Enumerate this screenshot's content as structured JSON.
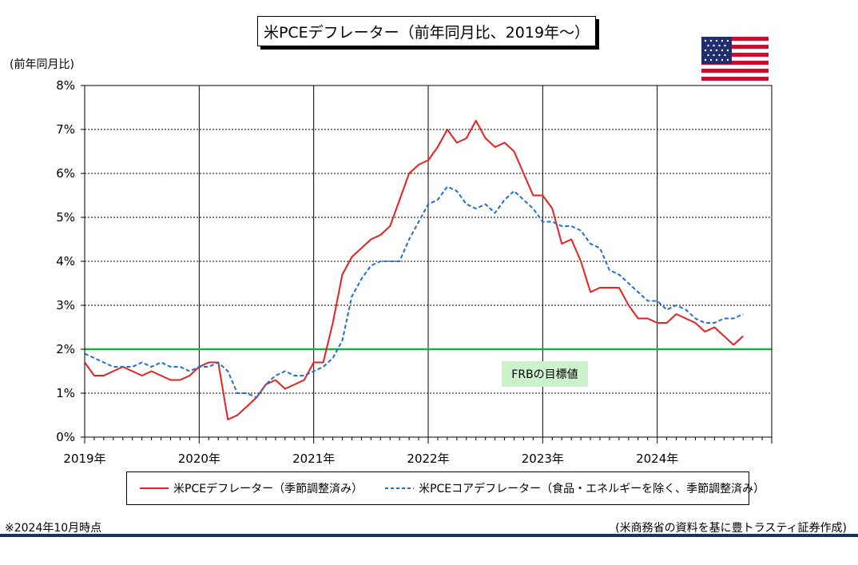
{
  "title": "米PCEデフレーター（前年同月比、2019年～）",
  "y_unit_label": "(前年同月比)",
  "target_label": "FRBの目標値",
  "note_left": "※2024年10月時点",
  "note_right": "(米商務省の資料を基に豊トラスティ証券作成)",
  "flag_icon": "us-flag-icon",
  "colors": {
    "headline": "#e8201e",
    "core": "#1f6fd1",
    "target": "#1fad4a",
    "bottom_rule": "#17365d"
  },
  "chart_data": {
    "type": "line",
    "title": "米PCEデフレーター（前年同月比、2019年～）",
    "ylabel": "(前年同月比)",
    "xlabel": "",
    "ylim": [
      0,
      8
    ],
    "xlim": [
      "2019-01",
      "2025-01"
    ],
    "yticks": [
      "0%",
      "1%",
      "2%",
      "3%",
      "4%",
      "5%",
      "6%",
      "7%",
      "8%"
    ],
    "xticks": [
      "2019年",
      "2020年",
      "2021年",
      "2022年",
      "2023年",
      "2024年"
    ],
    "grid": true,
    "legend_position": "bottom",
    "reference_line": {
      "value": 2.0,
      "label": "FRBの目標値"
    },
    "series": [
      {
        "name": "米PCEデフレーター（季節調整済み）",
        "style": "solid",
        "values": [
          1.7,
          1.4,
          1.4,
          1.5,
          1.6,
          1.5,
          1.4,
          1.5,
          1.4,
          1.3,
          1.3,
          1.4,
          1.6,
          1.7,
          1.7,
          0.4,
          0.5,
          0.7,
          0.9,
          1.2,
          1.3,
          1.1,
          1.2,
          1.3,
          1.7,
          1.7,
          2.6,
          3.7,
          4.1,
          4.3,
          4.5,
          4.6,
          4.8,
          5.4,
          6.0,
          6.2,
          6.3,
          6.6,
          7.0,
          6.7,
          6.8,
          7.2,
          6.8,
          6.6,
          6.7,
          6.5,
          6.0,
          5.5,
          5.5,
          5.2,
          4.4,
          4.5,
          4.0,
          3.3,
          3.4,
          3.4,
          3.4,
          3.0,
          2.7,
          2.7,
          2.6,
          2.6,
          2.8,
          2.7,
          2.6,
          2.4,
          2.5,
          2.3,
          2.1,
          2.3
        ]
      },
      {
        "name": "米PCEコアデフレーター（食品・エネルギーを除く、季節調整済み）",
        "style": "dashed",
        "values": [
          1.9,
          1.8,
          1.7,
          1.6,
          1.6,
          1.6,
          1.7,
          1.6,
          1.7,
          1.6,
          1.6,
          1.5,
          1.6,
          1.6,
          1.7,
          1.5,
          1.0,
          1.0,
          0.9,
          1.2,
          1.4,
          1.5,
          1.4,
          1.4,
          1.5,
          1.6,
          1.8,
          2.2,
          3.2,
          3.6,
          3.9,
          4.0,
          4.0,
          4.0,
          4.5,
          4.9,
          5.3,
          5.4,
          5.7,
          5.6,
          5.3,
          5.2,
          5.3,
          5.1,
          5.4,
          5.6,
          5.4,
          5.2,
          4.9,
          4.9,
          4.8,
          4.8,
          4.7,
          4.4,
          4.3,
          3.8,
          3.7,
          3.5,
          3.3,
          3.1,
          3.1,
          2.9,
          3.0,
          2.9,
          2.7,
          2.6,
          2.6,
          2.7,
          2.7,
          2.8
        ]
      }
    ]
  }
}
